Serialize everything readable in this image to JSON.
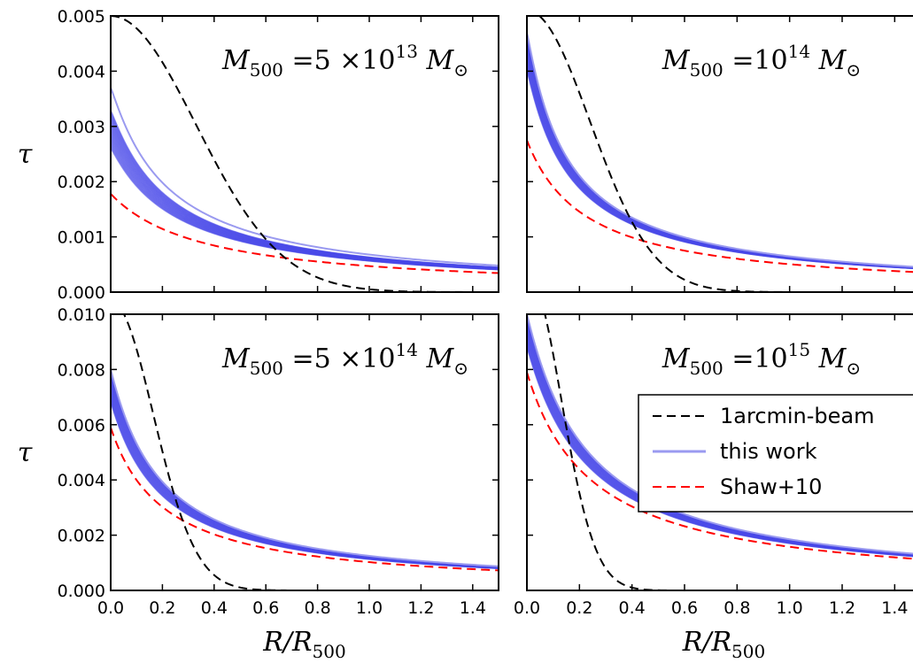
{
  "chart_data": {
    "type": "line",
    "xlabel": "R/R500",
    "ylabel": "τ",
    "xlim": [
      0.0,
      1.5
    ],
    "x_ticks": [
      "0.0",
      "0.2",
      "0.4",
      "0.6",
      "0.8",
      "1.0",
      "1.2",
      "1.4"
    ],
    "legend": {
      "placement": "center-right",
      "entries": [
        {
          "label": "1arcmin-beam",
          "color": "#000000",
          "dash": "dashed"
        },
        {
          "label": "this work",
          "color": "#9a9af0",
          "dash": "solid"
        },
        {
          "label": "Shaw+10",
          "color": "#ff0000",
          "dash": "dashed"
        }
      ]
    },
    "panels": [
      {
        "id": "top-left",
        "title": "M500 = 5 ×10^13 M⊙",
        "ylim": [
          0,
          0.005
        ],
        "y_ticks": [
          "0.000",
          "0.001",
          "0.002",
          "0.003",
          "0.004",
          "0.005"
        ],
        "beam": {
          "amplitude": 0.005,
          "sigma": 0.33
        },
        "shaw": {
          "tau0": 0.00178,
          "rc": 0.36
        },
        "this_work": {
          "band_low": 0.0026,
          "band_high": 0.0033,
          "outlier": 0.0037,
          "rc": 0.16
        }
      },
      {
        "id": "top-right",
        "title": "M500 = 10^14 M⊙",
        "ylim": [
          0,
          0.005
        ],
        "y_ticks": [
          "0.000",
          "0.001",
          "0.002",
          "0.003",
          "0.004",
          "0.005"
        ],
        "beam": {
          "amplitude": 0.0051,
          "sigma": 0.24
        },
        "shaw": {
          "tau0": 0.00275,
          "rc": 0.225
        },
        "this_work": {
          "band_low": 0.004,
          "band_high": 0.0047,
          "outlier": 0.0047,
          "rc": 0.11
        }
      },
      {
        "id": "bottom-left",
        "title": "M500 = 5 ×10^14 M⊙",
        "ylim": [
          0,
          0.01
        ],
        "y_ticks": [
          "0.000",
          "0.002",
          "0.004",
          "0.006",
          "0.008",
          "0.010"
        ],
        "beam": {
          "amplitude": 0.0105,
          "sigma": 0.165
        },
        "shaw": {
          "tau0": 0.0059,
          "rc": 0.21
        },
        "this_work": {
          "band_low": 0.0068,
          "band_high": 0.008,
          "outlier": 0.008,
          "rc": 0.16
        }
      },
      {
        "id": "bottom-right",
        "title": "M500 = 10^15 M⊙",
        "ylim": [
          0,
          0.01
        ],
        "y_ticks": [
          "0.000",
          "0.002",
          "0.004",
          "0.006",
          "0.008",
          "0.010"
        ],
        "beam": {
          "amplitude": 0.0115,
          "sigma": 0.13
        },
        "shaw": {
          "tau0": 0.0079,
          "rc": 0.25
        },
        "this_work": {
          "band_low": 0.0088,
          "band_high": 0.01,
          "outlier": 0.01,
          "rc": 0.19
        }
      }
    ]
  }
}
